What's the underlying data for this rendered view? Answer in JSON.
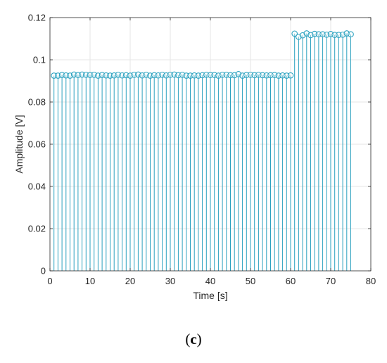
{
  "chart_data": {
    "type": "stem",
    "xlabel": "Time [s]",
    "ylabel": "Amplitude [V]",
    "xlim": [
      0,
      80
    ],
    "ylim": [
      0,
      0.12
    ],
    "xticks": [
      0,
      10,
      20,
      30,
      40,
      50,
      60,
      70,
      80
    ],
    "yticks": [
      0,
      0.02,
      0.04,
      0.06,
      0.08,
      0.1,
      0.12
    ],
    "xtick_labels": [
      "0",
      "10",
      "20",
      "30",
      "40",
      "50",
      "60",
      "70",
      "80"
    ],
    "ytick_labels": [
      "0",
      "0.02",
      "0.04",
      "0.06",
      "0.08",
      "0.1",
      "0.12"
    ],
    "grid": true,
    "color": "#2aa1bf",
    "series": [
      {
        "x": [
          1,
          2,
          3,
          4,
          5,
          6,
          7,
          8,
          9,
          10,
          11,
          12,
          13,
          14,
          15,
          16,
          17,
          18,
          19,
          20,
          21,
          22,
          23,
          24,
          25,
          26,
          27,
          28,
          29,
          30,
          31,
          32,
          33,
          34,
          35,
          36,
          37,
          38,
          39,
          40,
          41,
          42,
          43,
          44,
          45,
          46,
          47,
          48,
          49,
          50,
          51,
          52,
          53,
          54,
          55,
          56,
          57,
          58,
          59,
          60,
          61,
          62,
          63,
          64,
          65,
          66,
          67,
          68,
          69,
          70,
          71,
          72,
          73,
          74,
          75
        ],
        "y": [
          0.0925,
          0.0925,
          0.0928,
          0.0926,
          0.0925,
          0.093,
          0.0928,
          0.093,
          0.0929,
          0.0928,
          0.0929,
          0.0925,
          0.0928,
          0.0926,
          0.0925,
          0.0926,
          0.0929,
          0.0926,
          0.0927,
          0.0925,
          0.0929,
          0.093,
          0.0926,
          0.0929,
          0.0925,
          0.0927,
          0.0926,
          0.0929,
          0.0926,
          0.0929,
          0.093,
          0.0927,
          0.0929,
          0.0925,
          0.0925,
          0.0926,
          0.0925,
          0.0927,
          0.0929,
          0.0928,
          0.0928,
          0.0925,
          0.0929,
          0.0929,
          0.0927,
          0.0927,
          0.0932,
          0.0925,
          0.0928,
          0.0929,
          0.0927,
          0.0929,
          0.0927,
          0.0926,
          0.0927,
          0.0928,
          0.0925,
          0.0926,
          0.0925,
          0.0926,
          0.1124,
          0.1109,
          0.1116,
          0.1125,
          0.1117,
          0.1123,
          0.1121,
          0.1121,
          0.1119,
          0.1122,
          0.1118,
          0.1118,
          0.1119,
          0.1125,
          0.1121
        ]
      }
    ]
  },
  "caption": {
    "open": "(",
    "letter": "c",
    "close": ")"
  }
}
